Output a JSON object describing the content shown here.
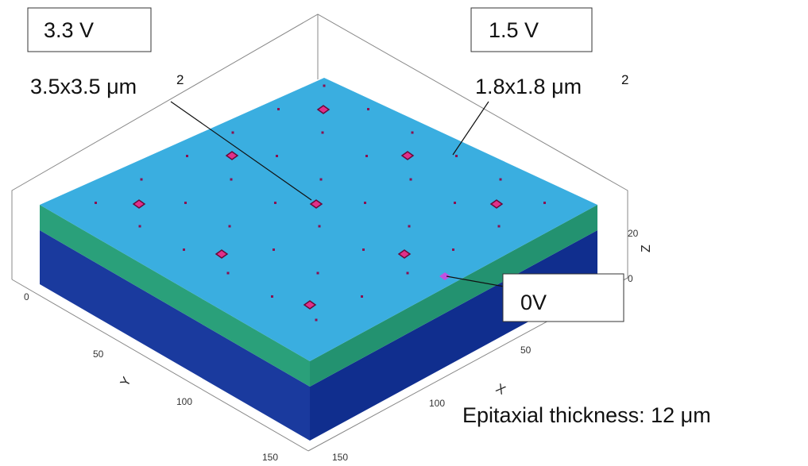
{
  "labels": {
    "left_voltage": "3.3 V",
    "right_voltage": "1.5 V",
    "ground_voltage": "0V",
    "left_size": {
      "text": "3.5x3.5 μm",
      "superscript": "2"
    },
    "right_size": {
      "text": "1.8x1.8 μm",
      "superscript": "2"
    },
    "thickness": "Epitaxial thickness: 12 μm"
  },
  "axes": {
    "y": {
      "label": "Y",
      "ticks": [
        "0",
        "50",
        "100",
        "150"
      ]
    },
    "x": {
      "label": "X",
      "ticks": [
        "50",
        "100",
        "150"
      ]
    },
    "z": {
      "label": "Z",
      "ticks": [
        "0",
        "20"
      ]
    }
  }
}
